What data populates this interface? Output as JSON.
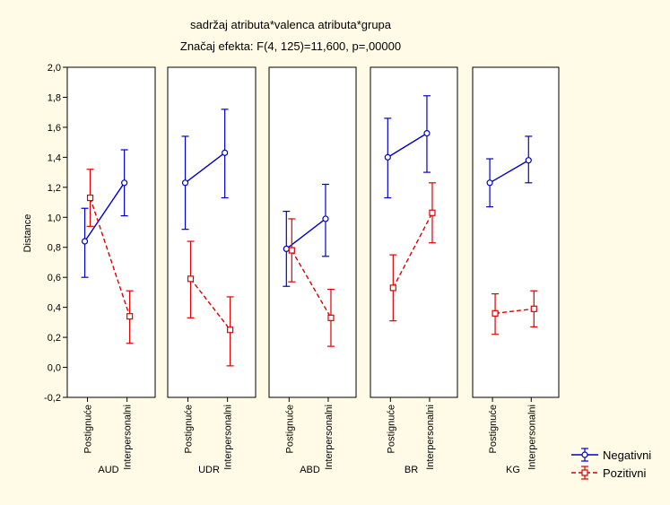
{
  "chart_data": {
    "type": "line",
    "title": "sadržaj atributa*valenca atributa*grupa",
    "subtitle": "Značaj efekta: F(4, 125)=11,600, p=,00000",
    "ylabel": "Distance",
    "ylim": [
      -0.2,
      2.0
    ],
    "yticks": [
      "-0,2",
      "0,0",
      "0,2",
      "0,4",
      "0,6",
      "0,8",
      "1,0",
      "1,2",
      "1,4",
      "1,6",
      "1,8",
      "2,0"
    ],
    "x_categories": [
      "Postignuće",
      "Interpersonalni"
    ],
    "groups": [
      "AUD",
      "UDR",
      "ABD",
      "BR",
      "KG"
    ],
    "legend_position": "bottom-right",
    "series": [
      {
        "name": "Negativni",
        "color": "#0000cc",
        "marker": "circle",
        "line_style": "solid",
        "values": [
          [
            0.84,
            1.23
          ],
          [
            1.23,
            1.43
          ],
          [
            0.79,
            0.99
          ],
          [
            1.4,
            1.56
          ],
          [
            1.23,
            1.38
          ]
        ],
        "ci_low": [
          [
            0.6,
            1.01
          ],
          [
            0.92,
            1.13
          ],
          [
            0.54,
            0.74
          ],
          [
            1.13,
            1.3
          ],
          [
            1.07,
            1.23
          ]
        ],
        "ci_high": [
          [
            1.06,
            1.45
          ],
          [
            1.54,
            1.72
          ],
          [
            1.04,
            1.22
          ],
          [
            1.66,
            1.81
          ],
          [
            1.39,
            1.54
          ]
        ]
      },
      {
        "name": "Pozitivni",
        "color": "#dd0000",
        "marker": "square",
        "line_style": "dashed",
        "values": [
          [
            1.13,
            0.34
          ],
          [
            0.59,
            0.25
          ],
          [
            0.78,
            0.33
          ],
          [
            0.53,
            1.03
          ],
          [
            0.36,
            0.39
          ]
        ],
        "ci_low": [
          [
            0.94,
            0.16
          ],
          [
            0.33,
            0.01
          ],
          [
            0.57,
            0.14
          ],
          [
            0.31,
            0.83
          ],
          [
            0.22,
            0.27
          ]
        ],
        "ci_high": [
          [
            1.32,
            0.51
          ],
          [
            0.84,
            0.47
          ],
          [
            0.99,
            0.52
          ],
          [
            0.75,
            1.23
          ],
          [
            0.49,
            0.51
          ]
        ]
      }
    ]
  }
}
